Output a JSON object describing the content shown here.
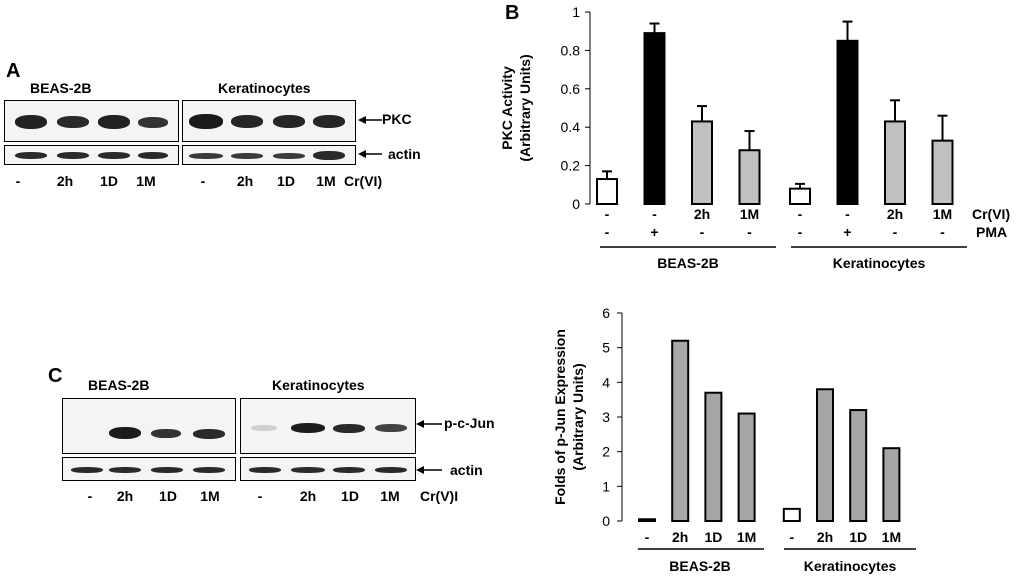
{
  "panel_a": {
    "letter": "A",
    "groups": [
      "BEAS-2B",
      "Keratinocytes"
    ],
    "targets": [
      "PKC",
      "actin"
    ],
    "lanes": [
      "-",
      "2h",
      "1D",
      "1M",
      "-",
      "2h",
      "1D",
      "1M"
    ],
    "treatment": "Cr(VI)"
  },
  "panel_c": {
    "letter": "C",
    "groups": [
      "BEAS-2B",
      "Keratinocytes"
    ],
    "targets": [
      "p-c-Jun",
      "actin"
    ],
    "lanes": [
      "-",
      "2h",
      "1D",
      "1M",
      "-",
      "2h",
      "1D",
      "1M"
    ],
    "treatment": "Cr(V)I"
  },
  "panel_b_letter": "B",
  "chart_data": [
    {
      "type": "bar",
      "ylabel": "PKC Activity\n(Arbitrary Units)",
      "ylim": [
        0,
        1
      ],
      "yticks": [
        "0",
        "0.2",
        "0.4",
        "0.6",
        "0.8",
        "1"
      ],
      "categories": [
        "-/-",
        "-/+",
        "2h/-",
        "1M/-",
        "-/-",
        "-/+",
        "2h/-",
        "1M/-"
      ],
      "values": [
        0.13,
        0.89,
        0.43,
        0.28,
        0.08,
        0.85,
        0.43,
        0.33
      ],
      "errors": [
        0.04,
        0.05,
        0.08,
        0.1,
        0.025,
        0.1,
        0.11,
        0.13
      ],
      "fills": [
        "#ffffff",
        "#000000",
        "#c0c0c0",
        "#c0c0c0",
        "#ffffff",
        "#000000",
        "#c0c0c0",
        "#c0c0c0"
      ],
      "row1_labels": [
        "-",
        "-",
        "2h",
        "1M",
        "-",
        "-",
        "2h",
        "1M"
      ],
      "row2_labels": [
        "-",
        "+",
        "-",
        "-",
        "-",
        "+",
        "-",
        "-"
      ],
      "row1_name": "Cr(VI)",
      "row2_name": "PMA",
      "groups": [
        "BEAS-2B",
        "Keratinocytes"
      ]
    },
    {
      "type": "bar",
      "ylabel": "Folds of p-Jun Expression\n(Arbitrary Units)",
      "ylim": [
        0,
        6
      ],
      "yticks": [
        "0",
        "1",
        "2",
        "3",
        "4",
        "5",
        "6"
      ],
      "categories": [
        "-",
        "2h",
        "1D",
        "1M",
        "-",
        "2h",
        "1D",
        "1M"
      ],
      "values": [
        0.05,
        5.2,
        3.7,
        3.1,
        0.35,
        3.8,
        3.2,
        2.1
      ],
      "fills": [
        "#ffffff",
        "#a6a6a6",
        "#a6a6a6",
        "#a6a6a6",
        "#ffffff",
        "#a6a6a6",
        "#a6a6a6",
        "#a6a6a6"
      ],
      "groups": [
        "BEAS-2B",
        "Keratinocytes"
      ]
    }
  ]
}
